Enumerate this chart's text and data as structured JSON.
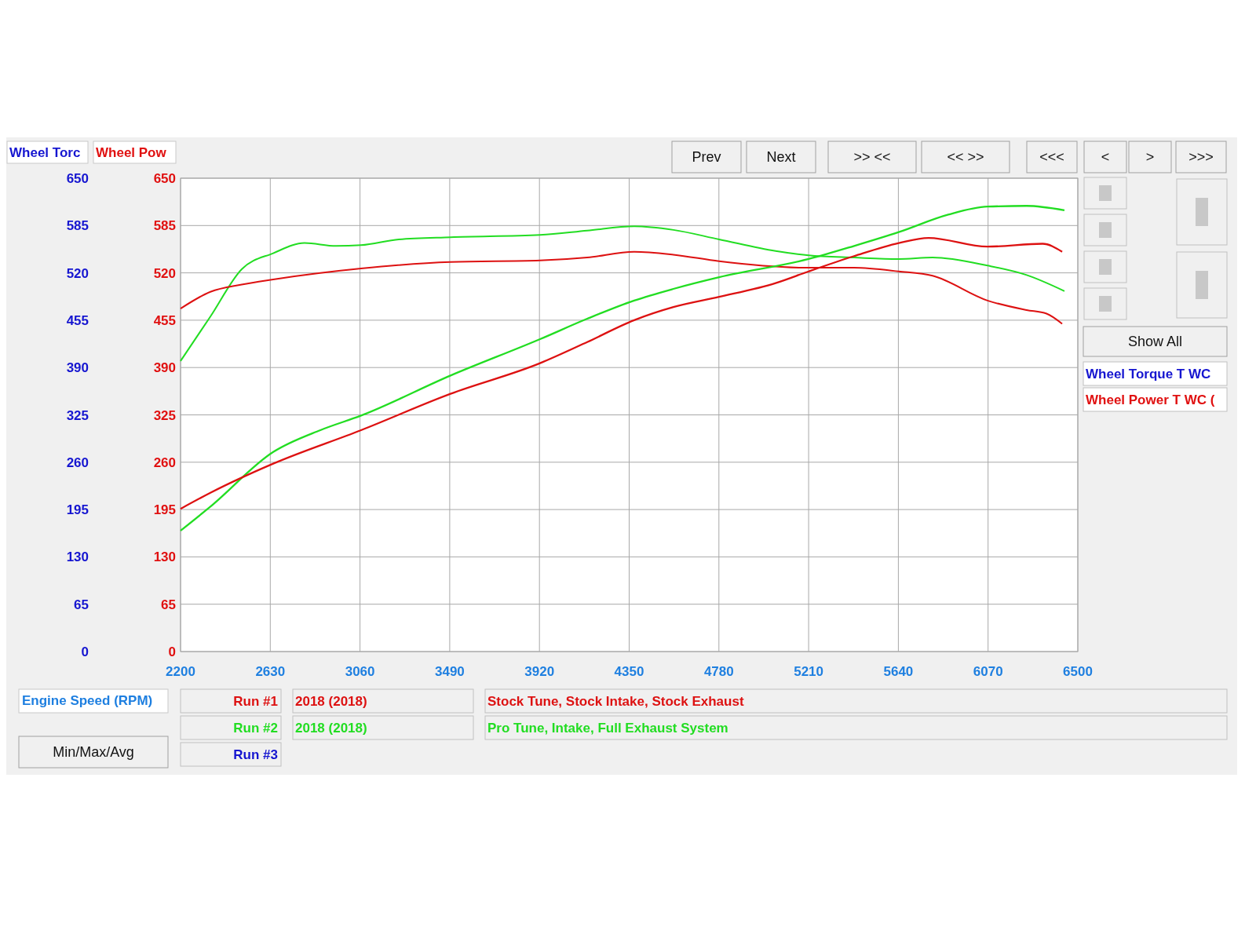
{
  "chart_data": {
    "type": "line",
    "ylabel": "Wheel Torc",
    "y2label": "Wheel Pow",
    "xlabel": "Engine Speed (RPM)",
    "xlim": [
      2200,
      6500
    ],
    "xticks": [
      2200,
      2630,
      3060,
      3490,
      3920,
      4350,
      4780,
      5210,
      5640,
      6070,
      6500
    ],
    "ylim": [
      0,
      650
    ],
    "yticks": [
      0,
      65,
      130,
      195,
      260,
      325,
      390,
      455,
      520,
      585,
      650
    ],
    "y2lim": [
      0,
      650
    ],
    "y2ticks": [
      0,
      65,
      130,
      195,
      260,
      325,
      390,
      455,
      520,
      585,
      650
    ],
    "grid": true,
    "line_style": "solid",
    "marker": "none",
    "series": [
      {
        "color": "#22dd22",
        "x": [
          2200,
          2343,
          2493,
          2644,
          2794,
          2945,
          3065,
          3246,
          3494,
          3923,
          4149,
          4374,
          4562,
          4781,
          5052,
          5210,
          5428,
          5642,
          5804,
          6067,
          6255,
          6436
        ],
        "values": [
          399,
          460,
          525,
          547,
          561,
          557,
          558,
          566,
          569,
          572,
          578,
          584,
          579,
          566,
          550,
          544,
          541,
          539,
          541,
          530,
          517,
          495
        ]
      },
      {
        "color": "#dd1111",
        "x": [
          2200,
          2343,
          2493,
          2644,
          3065,
          3494,
          3923,
          4149,
          4374,
          4562,
          4781,
          5210,
          5428,
          5642,
          5804,
          6067,
          6255,
          6350,
          6425
        ],
        "values": [
          471,
          494,
          504,
          511,
          526,
          535,
          537,
          541,
          549,
          545,
          536,
          527,
          527,
          522,
          516,
          482,
          469,
          464,
          450
        ]
      },
      {
        "color": "#22dd22",
        "axis": "y2",
        "x": [
          2200,
          2343,
          2644,
          2870,
          3065,
          3494,
          3923,
          4149,
          4374,
          4562,
          4781,
          5210,
          5428,
          5642,
          5879,
          6067,
          6255,
          6436
        ],
        "values": [
          166,
          199,
          274,
          304,
          324,
          379,
          429,
          457,
          482,
          498,
          514,
          539,
          557,
          576,
          600,
          611,
          612,
          606
        ]
      },
      {
        "color": "#dd1111",
        "axis": "y2",
        "x": [
          2200,
          2343,
          2644,
          3065,
          3494,
          3923,
          4149,
          4374,
          4562,
          4781,
          5052,
          5210,
          5428,
          5642,
          5785,
          6067,
          6331,
          6425
        ],
        "values": [
          196,
          218,
          258,
          304,
          354,
          396,
          425,
          455,
          473,
          487,
          506,
          522,
          543,
          561,
          568,
          556,
          560,
          549
        ]
      }
    ],
    "annotations": [
      "Prev",
      "Next",
      ">> <<",
      "<< >>",
      "<<<",
      "<",
      ">",
      ">>>",
      "Show All",
      "Wheel Torque T WC",
      "Wheel Power T WC (",
      "Run #1",
      "2018 (2018)",
      "Stock Tune, Stock Intake, Stock Exhaust",
      "Run #2",
      "2018 (2018)",
      "Pro Tune, Intake, Full Exhaust System",
      "Run #3",
      "Min/Max/Avg"
    ]
  }
}
